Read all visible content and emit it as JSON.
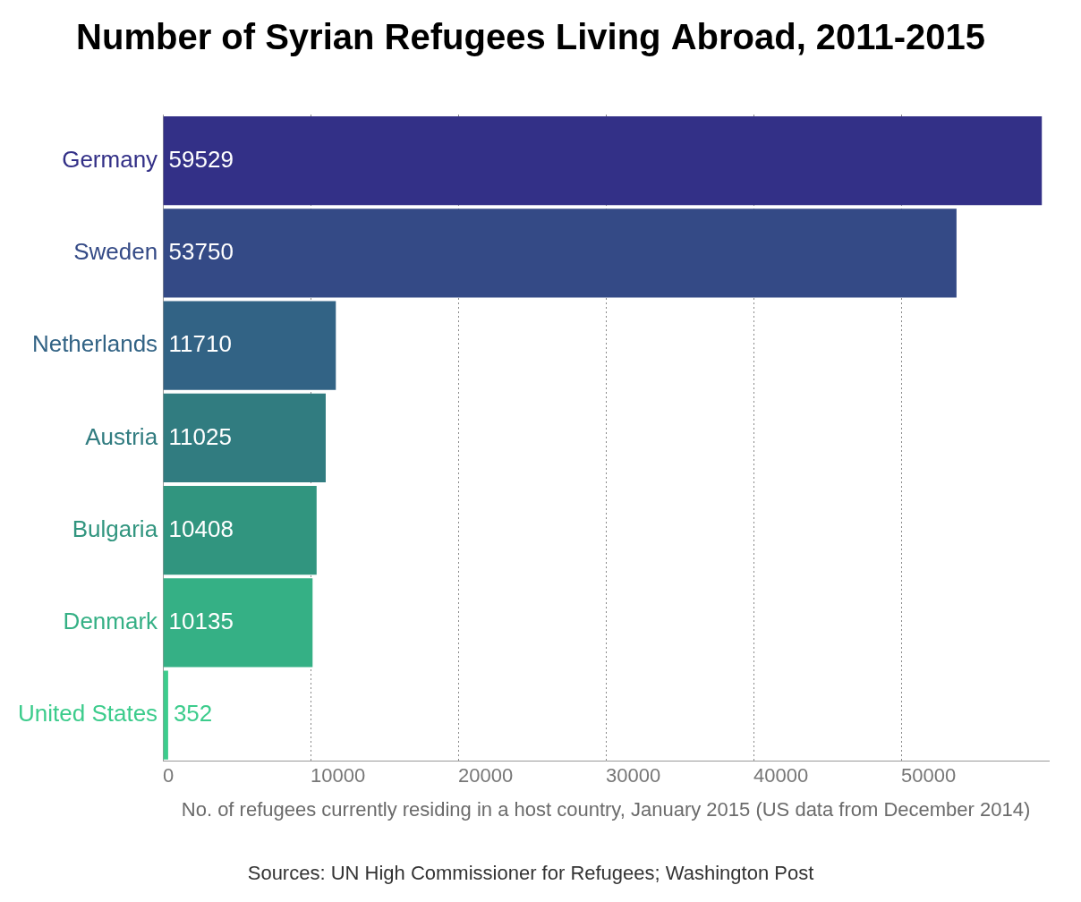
{
  "chart_data": {
    "type": "bar",
    "orientation": "horizontal",
    "title": "Number of Syrian Refugees Living Abroad, 2011-2015",
    "xlabel": "No. of refugees currently residing in a host country, January 2015 (US data from December 2014)",
    "annotations": [
      "Sources: UN High Commissioner for Refugees; Washington Post"
    ],
    "categories": [
      "Germany",
      "Sweden",
      "Netherlands",
      "Austria",
      "Bulgaria",
      "Denmark",
      "United States"
    ],
    "values": [
      59529,
      53750,
      11710,
      11025,
      10408,
      10135,
      352
    ],
    "colors": [
      "#333087",
      "#344a86",
      "#326385",
      "#317c80",
      "#31957f",
      "#35b085",
      "#3ccc8c"
    ],
    "xlim": [
      0,
      60000
    ],
    "xticks": [
      0,
      10000,
      20000,
      30000,
      40000,
      50000
    ],
    "grid": true,
    "data_labels": true
  }
}
